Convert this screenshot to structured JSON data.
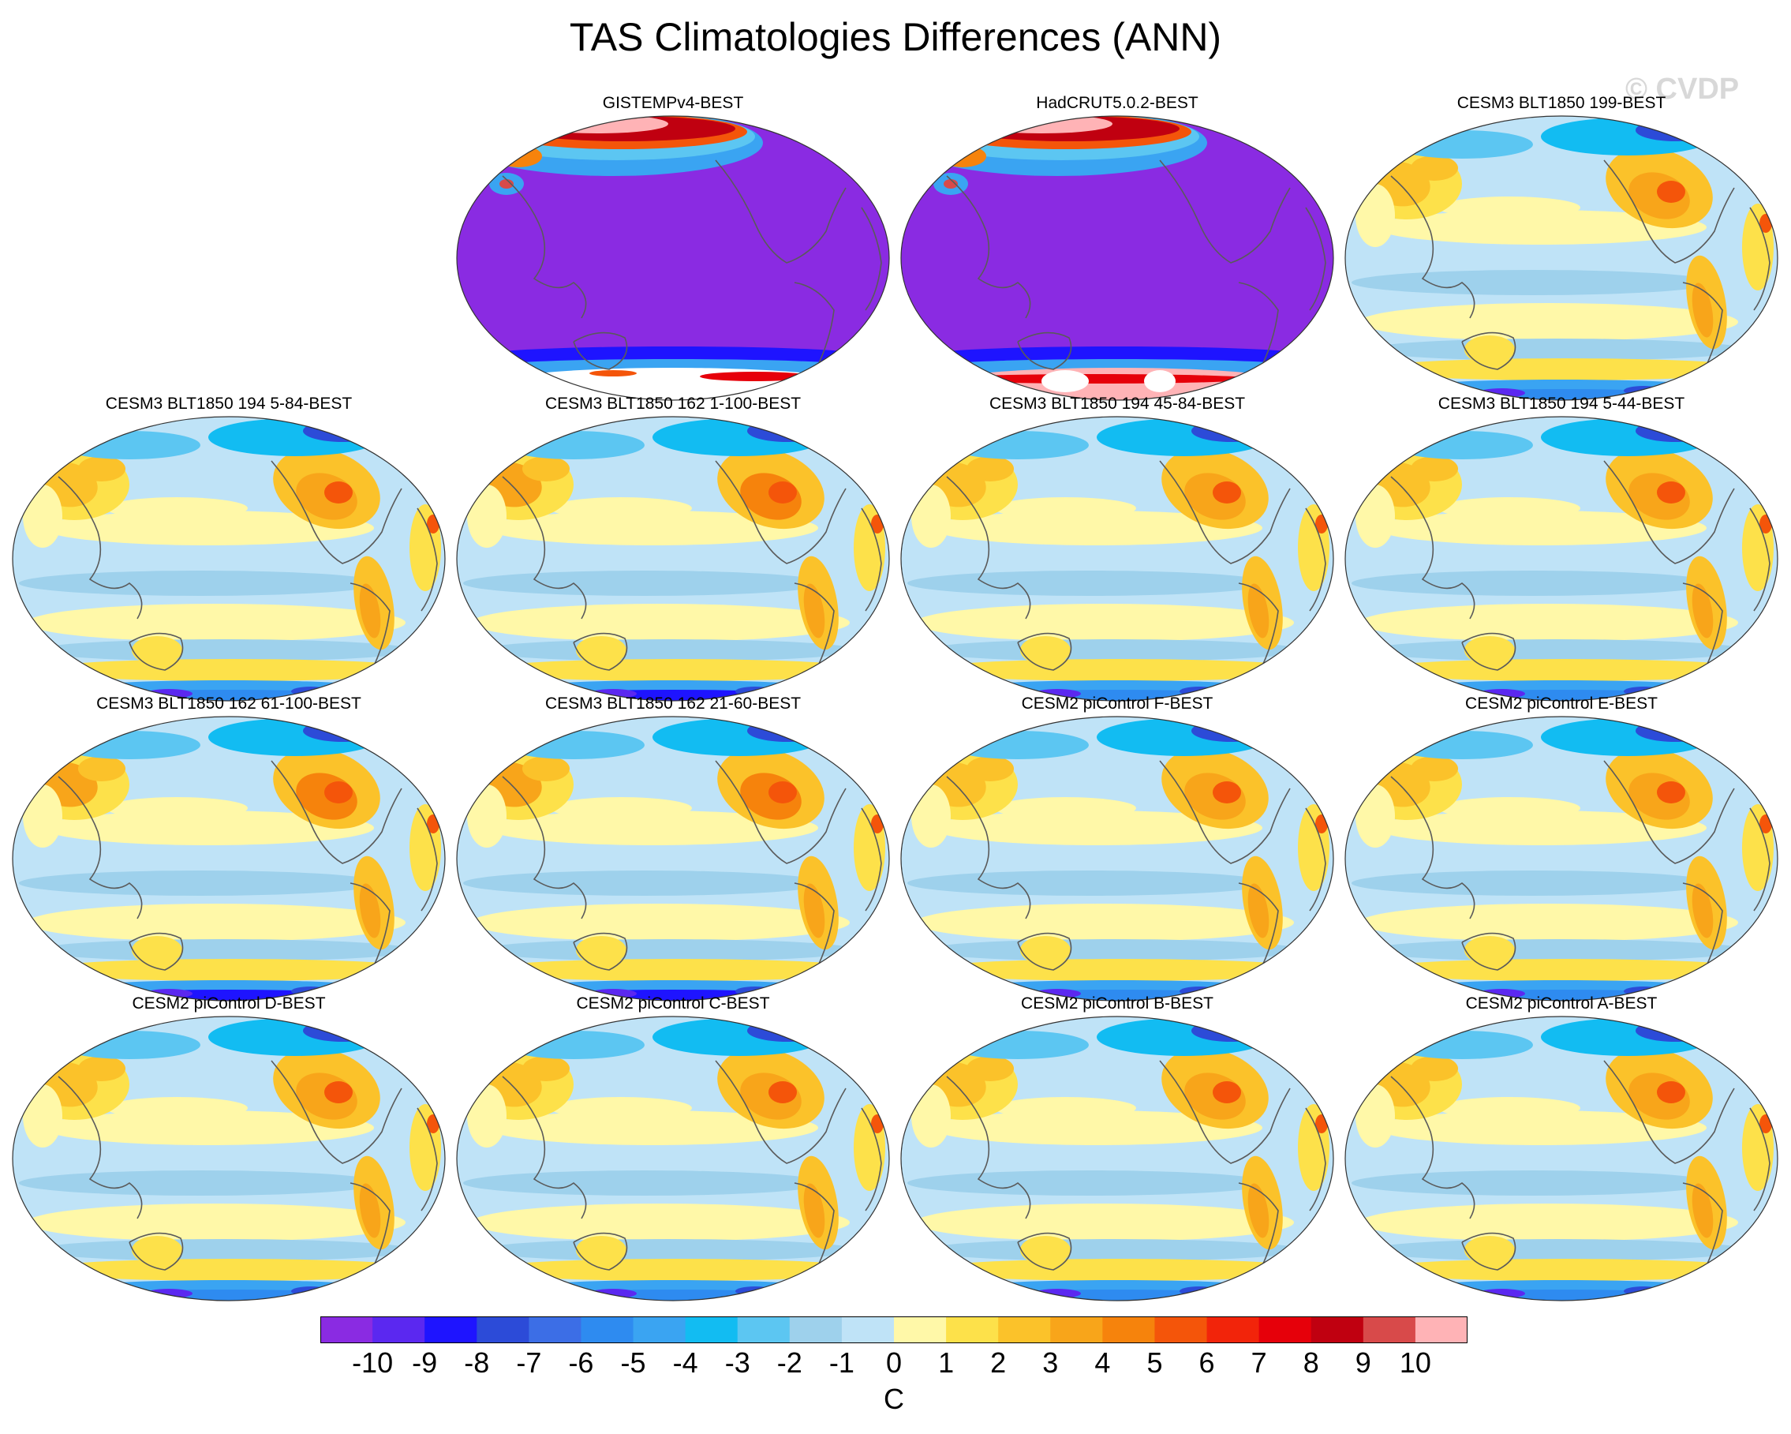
{
  "title": "TAS Climatologies Differences (ANN)",
  "watermark": "© CVDP",
  "chart_data": {
    "type": "contour-map-grid",
    "title": "TAS Climatologies Differences (ANN)",
    "variable": "TAS",
    "season": "ANN",
    "units": "C",
    "projection": "Robinson-like global, Pacific-centred",
    "panels": [
      {
        "label": "GISTEMPv4-BEST",
        "pattern": "obs-gistemp"
      },
      {
        "label": "HadCRUT5.0.2-BEST",
        "pattern": "obs-hadcrut"
      },
      {
        "label": "CESM3 BLT1850 199-BEST",
        "pattern": "model"
      },
      {
        "label": "CESM3 BLT1850 194 5-84-BEST",
        "pattern": "model"
      },
      {
        "label": "CESM3 BLT1850 162 1-100-BEST",
        "pattern": "model-warm"
      },
      {
        "label": "CESM3 BLT1850 194 45-84-BEST",
        "pattern": "model"
      },
      {
        "label": "CESM3 BLT1850 194 5-44-BEST",
        "pattern": "model"
      },
      {
        "label": "CESM3 BLT1850 162 61-100-BEST",
        "pattern": "model-warm"
      },
      {
        "label": "CESM3 BLT1850 162 21-60-BEST",
        "pattern": "model-warm"
      },
      {
        "label": "CESM2 piControl F-BEST",
        "pattern": "model"
      },
      {
        "label": "CESM2 piControl E-BEST",
        "pattern": "model"
      },
      {
        "label": "CESM2 piControl D-BEST",
        "pattern": "model"
      },
      {
        "label": "CESM2 piControl C-BEST",
        "pattern": "model"
      },
      {
        "label": "CESM2 piControl B-BEST",
        "pattern": "model"
      },
      {
        "label": "CESM2 piControl A-BEST",
        "pattern": "model"
      }
    ],
    "colorbar": {
      "tick_labels": [
        "-10",
        "-9",
        "-8",
        "-7",
        "-6",
        "-5",
        "-4",
        "-3",
        "-2",
        "-1",
        "0",
        "1",
        "2",
        "3",
        "4",
        "5",
        "6",
        "7",
        "8",
        "9",
        "10"
      ],
      "units_label": "C",
      "colors": [
        "#8a2be2",
        "#5b28f0",
        "#1e14ff",
        "#2c4bd8",
        "#3c6ee6",
        "#2e8bf0",
        "#3aa4f2",
        "#12bcf2",
        "#5cc6f2",
        "#9ed1ec",
        "#bfe3f7",
        "#fff8a8",
        "#fde14a",
        "#fbc22a",
        "#f8a51a",
        "#f6830c",
        "#f4550a",
        "#f2240a",
        "#e6000a",
        "#c00010",
        "#d84a4a",
        "#ffb3b6"
      ]
    }
  }
}
